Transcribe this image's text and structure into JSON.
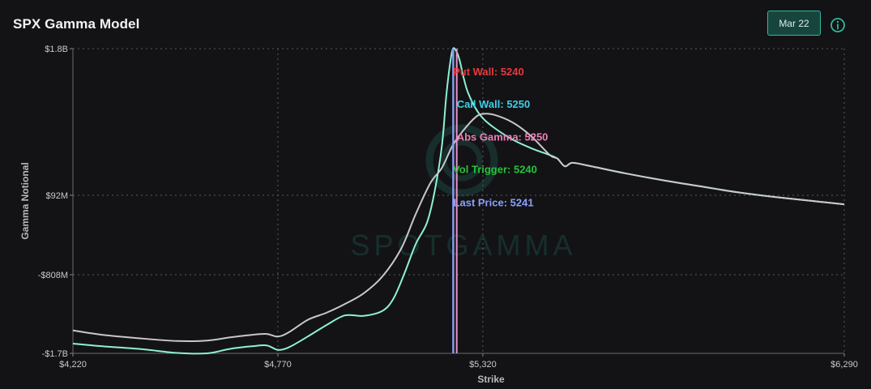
{
  "header": {
    "title": "SPX Gamma Model",
    "date_label": "Mar 22",
    "info_icon": "info-circle-icon",
    "accent": "#2fb89d"
  },
  "watermark": {
    "text": "SPOTGAMMA"
  },
  "chart_data": {
    "type": "line",
    "title": "SPX Gamma Model",
    "xlabel": "Strike",
    "ylabel": "Gamma Notional",
    "xlim": [
      4220,
      6290
    ],
    "ylim": [
      -1700,
      1800
    ],
    "x_ticks": [
      {
        "value": 4220,
        "label": "$4,220"
      },
      {
        "value": 4770,
        "label": "$4,770"
      },
      {
        "value": 5320,
        "label": "$5,320"
      },
      {
        "value": 6290,
        "label": "$6,290"
      }
    ],
    "y_ticks": [
      {
        "value": 1800,
        "label": "$1.8B"
      },
      {
        "value": 92,
        "label": "$92M"
      },
      {
        "value": -808,
        "label": "-$808M"
      },
      {
        "value": -1700,
        "label": "-$1.7B"
      }
    ],
    "grid": true,
    "series": [
      {
        "color": "#8ff0d6",
        "x": [
          4220,
          4300,
          4400,
          4500,
          4580,
          4640,
          4700,
          4740,
          4770,
          4800,
          4850,
          4900,
          4950,
          5000,
          5050,
          5080,
          5110,
          5140,
          5170,
          5190,
          5210,
          5222,
          5232,
          5240,
          5250,
          5258,
          5268,
          5280,
          5300,
          5320,
          5350,
          5400,
          5450,
          5500,
          5520,
          5540,
          5560,
          5600,
          5700,
          5800,
          5900,
          6000,
          6100,
          6200,
          6290
        ],
        "y": [
          -1590,
          -1620,
          -1650,
          -1695,
          -1700,
          -1650,
          -1620,
          -1610,
          -1660,
          -1630,
          -1510,
          -1380,
          -1270,
          -1275,
          -1220,
          -1080,
          -790,
          -460,
          -220,
          120,
          660,
          1250,
          1620,
          1800,
          1760,
          1660,
          1470,
          1290,
          1110,
          990,
          880,
          740,
          640,
          560,
          520,
          430,
          470,
          440,
          350,
          270,
          200,
          130,
          75,
          30,
          -10
        ]
      },
      {
        "color": "#c8c8cb",
        "x": [
          4220,
          4300,
          4400,
          4500,
          4580,
          4640,
          4700,
          4740,
          4770,
          4800,
          4850,
          4900,
          4950,
          5000,
          5050,
          5100,
          5140,
          5180,
          5210,
          5240,
          5270,
          5300,
          5320,
          5350,
          5400,
          5450,
          5500,
          5520,
          5540,
          5560,
          5600,
          5700,
          5800,
          5900,
          6000,
          6100,
          6200,
          6290
        ],
        "y": [
          -1440,
          -1490,
          -1530,
          -1560,
          -1555,
          -1520,
          -1490,
          -1480,
          -1510,
          -1460,
          -1320,
          -1240,
          -1140,
          -1020,
          -830,
          -520,
          -120,
          240,
          410,
          680,
          860,
          1000,
          1040,
          1030,
          940,
          780,
          560,
          520,
          430,
          470,
          440,
          350,
          270,
          200,
          130,
          75,
          30,
          -10
        ]
      }
    ],
    "annotations": [
      {
        "label": "Put Wall: 5240",
        "x": 5240,
        "y": 1490,
        "color": "#e8393b"
      },
      {
        "label": "Call Wall: 5250",
        "x": 5250,
        "y": 1110,
        "color": "#3fd0e6"
      },
      {
        "label": "Abs Gamma: 5250",
        "x": 5250,
        "y": 730,
        "color": "#f07fb6"
      },
      {
        "label": "Vol Trigger: 5240",
        "x": 5240,
        "y": 350,
        "color": "#27c13a"
      },
      {
        "label": "Last Price: 5241",
        "x": 5241,
        "y": -30,
        "color": "#8aa0ff"
      }
    ],
    "vlines": [
      {
        "x": 5240,
        "color": "#6f86c4"
      },
      {
        "x": 5241,
        "color": "#8aa0ff"
      },
      {
        "x": 5250,
        "color": "#e793c2"
      }
    ]
  }
}
